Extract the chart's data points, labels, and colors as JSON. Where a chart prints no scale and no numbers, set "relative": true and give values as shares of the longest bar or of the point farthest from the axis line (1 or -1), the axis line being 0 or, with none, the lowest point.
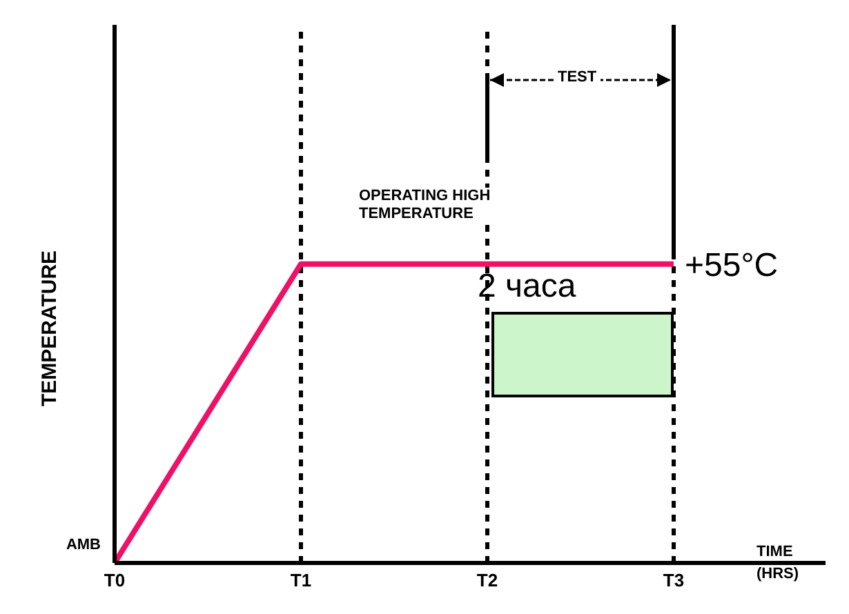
{
  "chart_data": {
    "type": "line",
    "relative": true,
    "xlabel": "TIME (HRS)",
    "ylabel": "TEMPERATURE",
    "categories": [
      "T0",
      "T1",
      "T2",
      "T3"
    ],
    "series": [
      {
        "color": "#ee1166",
        "values": [
          0,
          1,
          1,
          1
        ]
      }
    ],
    "ref_lines": [
      {
        "axis": "x",
        "value": "T1",
        "line_style": "dashed",
        "color": "#000000"
      },
      {
        "axis": "x",
        "value": "T2",
        "line_style": "dashed",
        "color": "#000000"
      },
      {
        "axis": "x",
        "value": "T3",
        "line_style": "dashed",
        "color": "#000000"
      }
    ],
    "annotations": [
      {
        "text": "AMB",
        "x": "T0",
        "y": 0
      },
      {
        "text": "+55°C",
        "x": "T3",
        "y": 1
      },
      "TEST",
      "OPERATING HIGH TEMPERATURE",
      "2 часа"
    ]
  }
}
